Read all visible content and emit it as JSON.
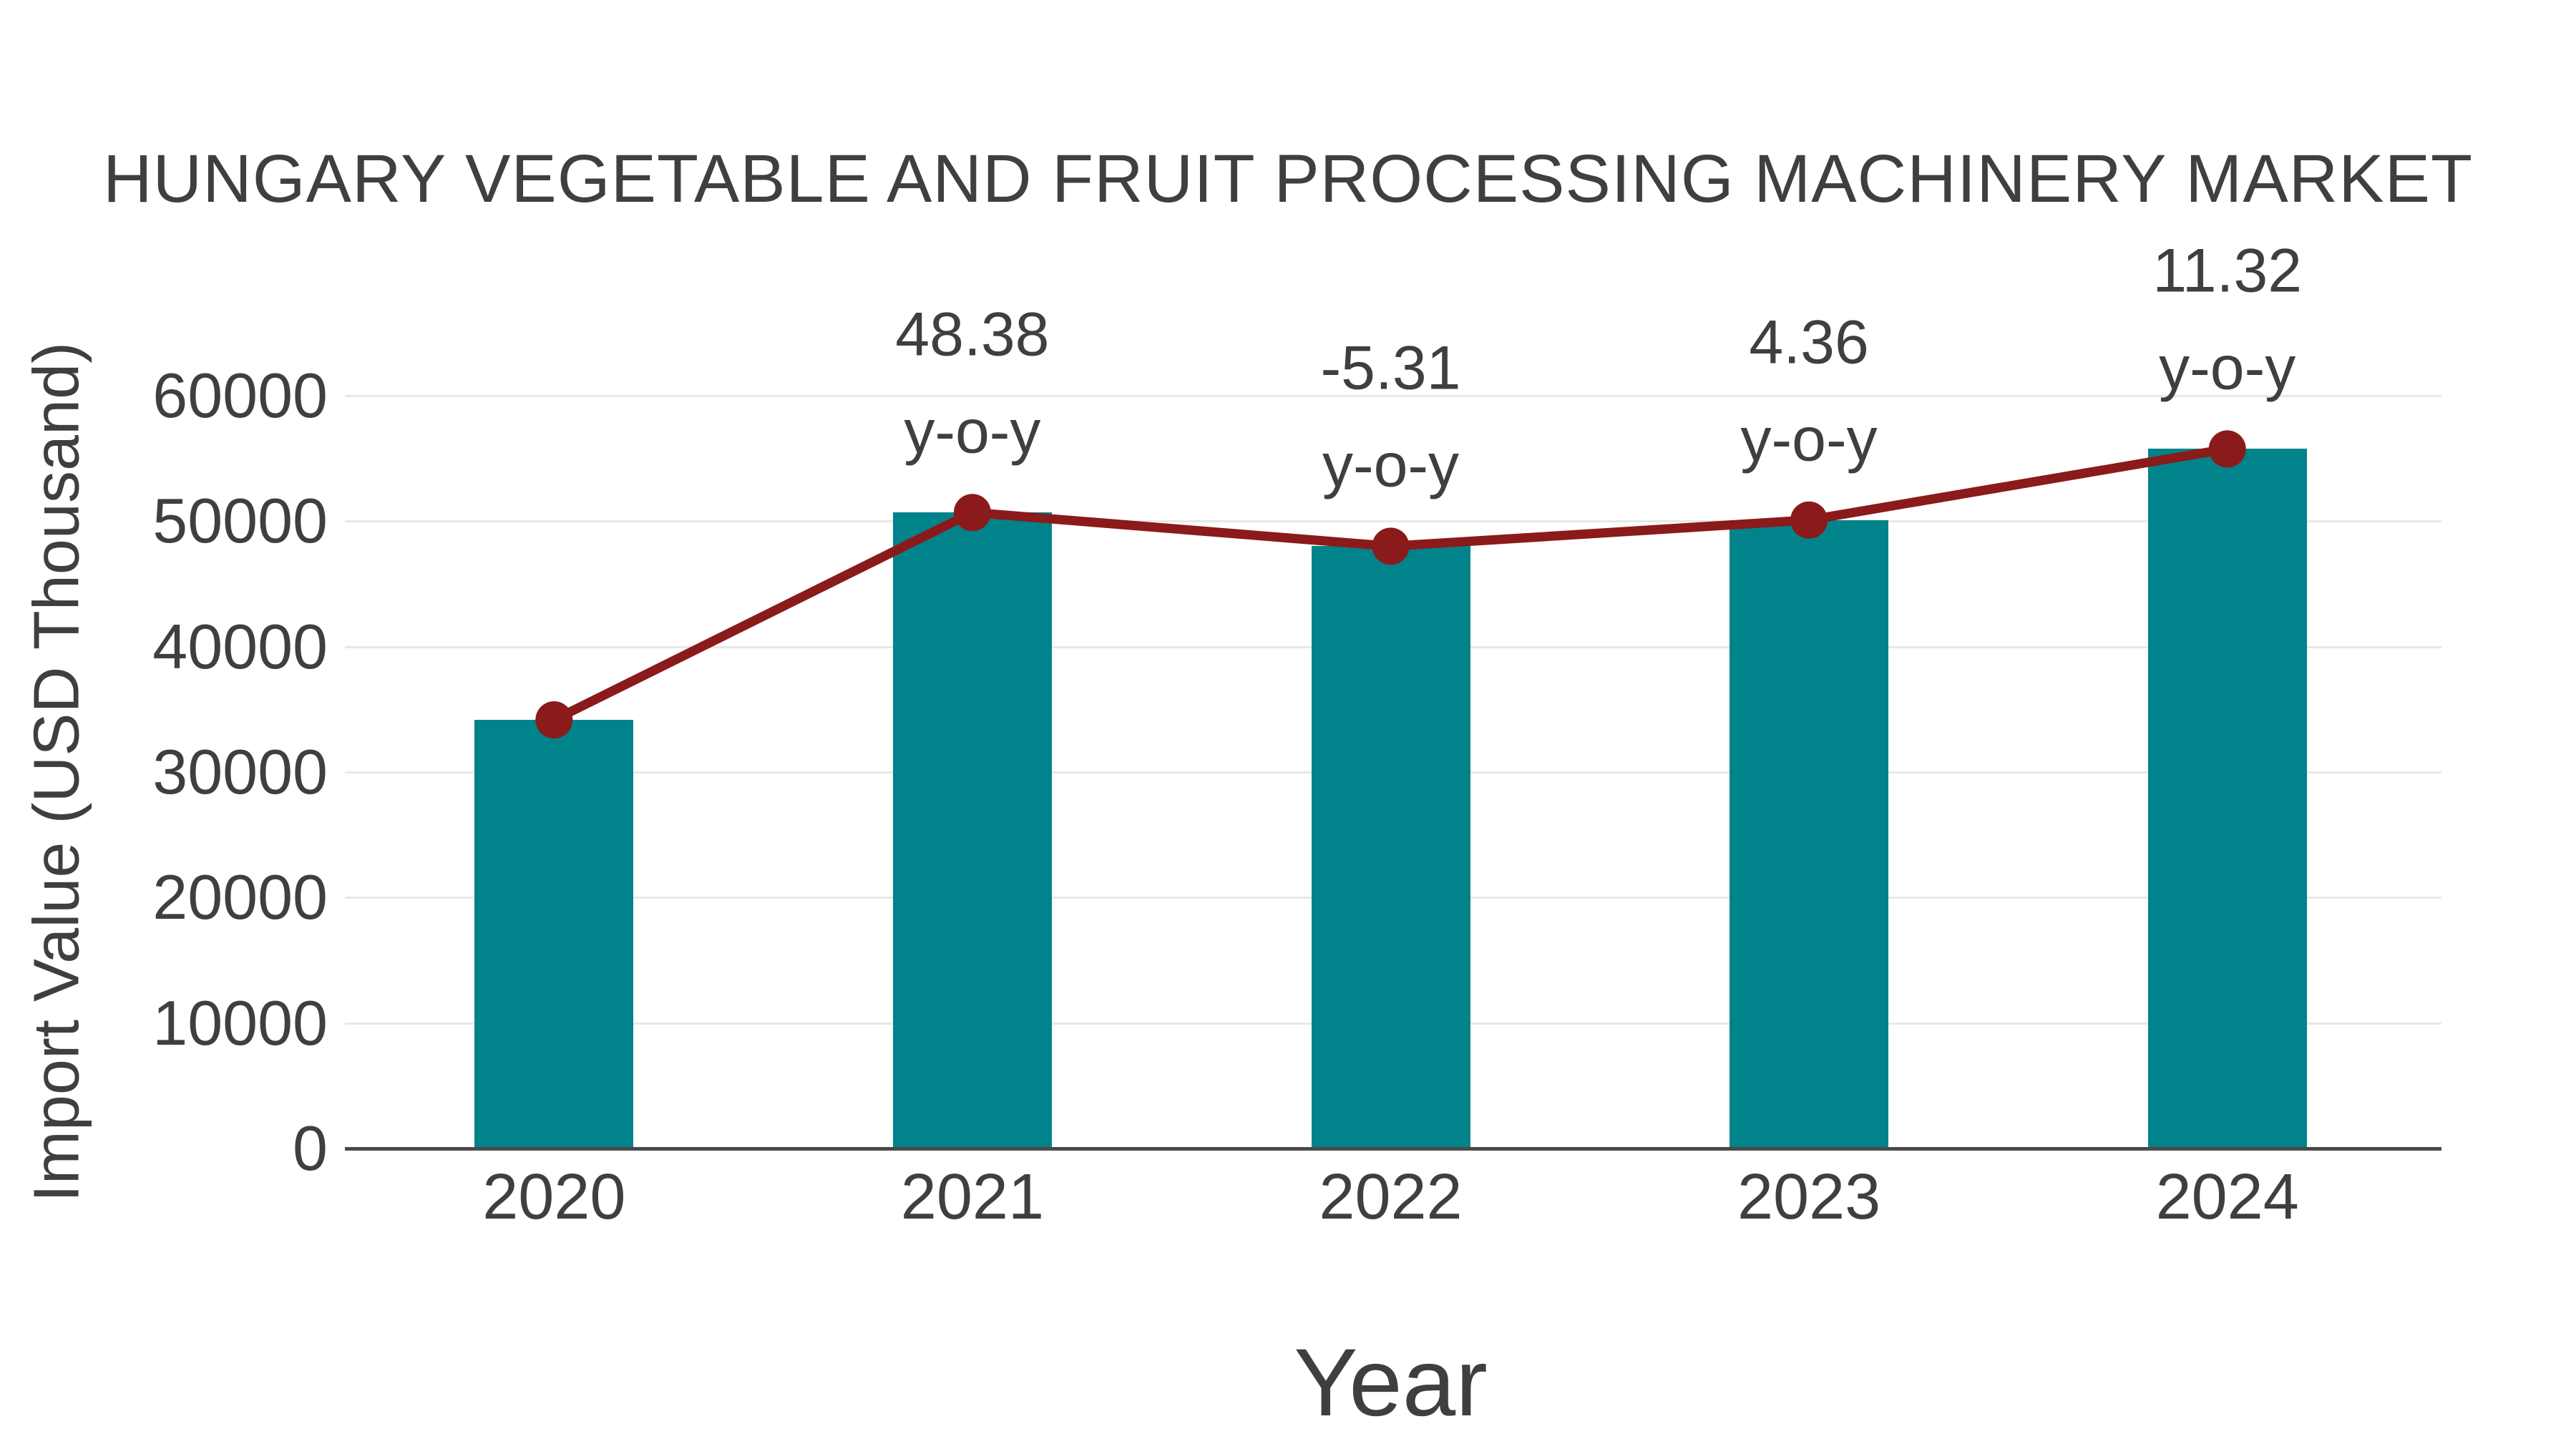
{
  "title": "HUNGARY VEGETABLE AND FRUIT PROCESSING MACHINERY MARKET",
  "chart_data": {
    "type": "bar",
    "title": "HUNGARY VEGETABLE AND FRUIT PROCESSING MACHINERY MARKET",
    "categories": [
      "2020",
      "2021",
      "2022",
      "2023",
      "2024"
    ],
    "series": [
      {
        "name": "Import Value",
        "type": "bar",
        "values": [
          34160,
          50690,
          48000,
          50090,
          55760
        ]
      },
      {
        "name": "Import Value trend",
        "type": "line",
        "values": [
          34160,
          50690,
          48000,
          50090,
          55760
        ]
      }
    ],
    "annotations": [
      {
        "category": "2021",
        "lines": [
          "48.38",
          "y-o-y"
        ]
      },
      {
        "category": "2022",
        "lines": [
          "-5.31",
          "y-o-y"
        ]
      },
      {
        "category": "2023",
        "lines": [
          "4.36",
          "y-o-y"
        ]
      },
      {
        "category": "2024",
        "lines": [
          "11.32",
          "y-o-y"
        ]
      }
    ],
    "xlabel": "Year",
    "ylabel": "Import Value (USD Thousand)",
    "ylim": [
      0,
      60000
    ],
    "yticks": [
      0,
      10000,
      20000,
      30000,
      40000,
      50000,
      60000
    ],
    "grid": true,
    "legend_position": "none"
  },
  "colors": {
    "bar": "#00838A",
    "line": "#8B1A1A",
    "marker": "#8B1A1A",
    "gridline": "#E8E8E8",
    "axis": "#4A4A4A",
    "text": "#404040",
    "background": "#FFFFFF"
  }
}
